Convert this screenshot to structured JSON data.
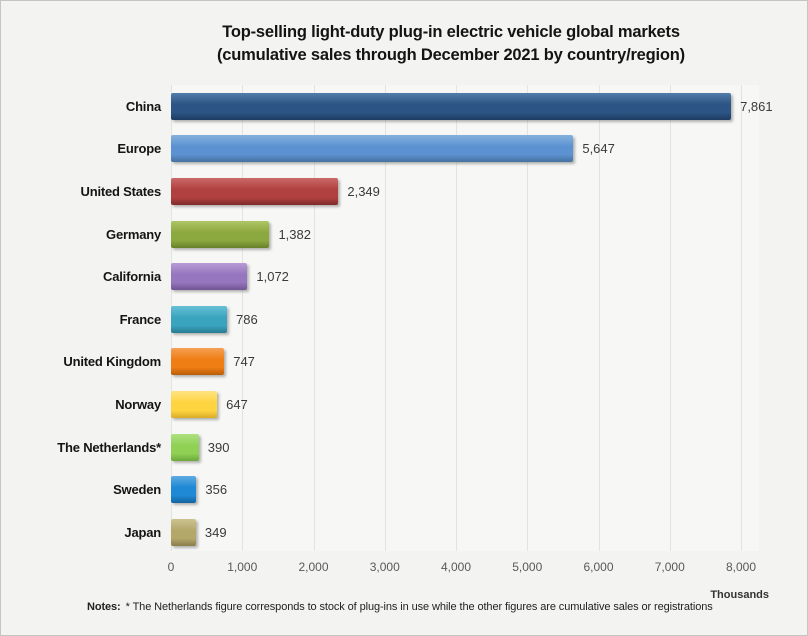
{
  "title": {
    "line1": "Top-selling light-duty plug-in electric vehicle global markets",
    "line2": "(cumulative sales through December 2021 by country/region)"
  },
  "chart_data": {
    "type": "bar",
    "orientation": "horizontal",
    "title": "Top-selling light-duty plug-in electric vehicle global markets (cumulative sales through December 2021 by country/region)",
    "categories": [
      "China",
      "Europe",
      "United States",
      "Germany",
      "California",
      "France",
      "United Kingdom",
      "Norway",
      "The Netherlands*",
      "Sweden",
      "Japan"
    ],
    "values": [
      7861,
      5647,
      2349,
      1382,
      1072,
      786,
      747,
      647,
      390,
      356,
      349
    ],
    "value_labels": [
      "7,861",
      "5,647",
      "2,349",
      "1,382",
      "1,072",
      "786",
      "747",
      "647",
      "390",
      "356",
      "349"
    ],
    "bar_colors": [
      {
        "light": "#537DA9",
        "main": "#2C5484",
        "dark": "#1E3C62"
      },
      {
        "light": "#85B0DE",
        "main": "#5C92D2",
        "dark": "#45719F"
      },
      {
        "light": "#C96A68",
        "main": "#B14140",
        "dark": "#7E2B2A"
      },
      {
        "light": "#AEC565",
        "main": "#8CA93F",
        "dark": "#67802B"
      },
      {
        "light": "#B79BD6",
        "main": "#9676BE",
        "dark": "#6F5694"
      },
      {
        "light": "#68C0D6",
        "main": "#3AA4BF",
        "dark": "#277C92"
      },
      {
        "light": "#F6A055",
        "main": "#EF7E15",
        "dark": "#B85D08"
      },
      {
        "light": "#FFE382",
        "main": "#FFD441",
        "dark": "#D9AC25"
      },
      {
        "light": "#AEE180",
        "main": "#90D155",
        "dark": "#6CA83B"
      },
      {
        "light": "#5FABE2",
        "main": "#1F89D5",
        "dark": "#13649E"
      },
      {
        "light": "#CDC391",
        "main": "#B3A76A",
        "dark": "#897D4B"
      }
    ],
    "xlim": [
      0,
      8000
    ],
    "x_ticks": [
      "0",
      "1,000",
      "2,000",
      "3,000",
      "4,000",
      "5,000",
      "6,000",
      "7,000",
      "8,000"
    ],
    "x_tick_values": [
      0,
      1000,
      2000,
      3000,
      4000,
      5000,
      6000,
      7000,
      8000
    ],
    "axis_unit": "Thousands",
    "grid": true,
    "legend_position": "none"
  },
  "notes": {
    "label": "Notes:",
    "text": "* The Netherlands figure corresponds to stock of plug-ins in use while the other figures are cumulative sales or registrations"
  }
}
